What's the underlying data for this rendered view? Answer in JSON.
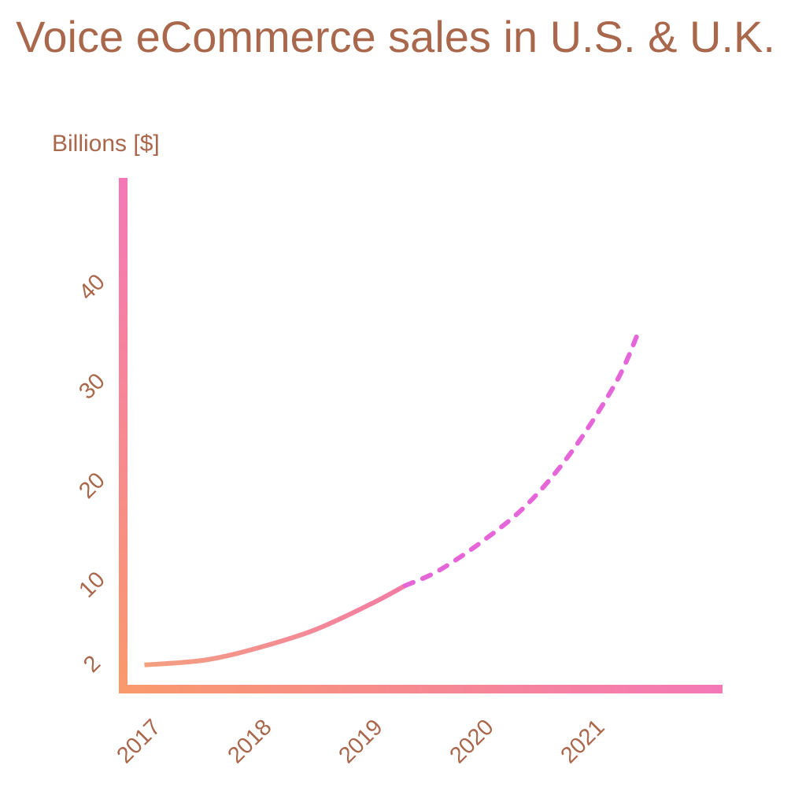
{
  "chart_data": {
    "type": "line",
    "title": "Voice eCommerce sales in U.S. & U.K.",
    "ylabel": "Billions [$]",
    "xlabel": "",
    "categories": [
      "2017",
      "2018",
      "2019",
      "2020",
      "2021"
    ],
    "y_ticks": [
      "2",
      "10",
      "20",
      "30",
      "40"
    ],
    "ylim": [
      0,
      50
    ],
    "grid": false,
    "series": [
      {
        "style": "solid",
        "x": [
          2016.95,
          2017.5,
          2018.0,
          2018.5,
          2019.0,
          2019.3
        ],
        "y": [
          2.0,
          2.5,
          3.8,
          5.6,
          8.2,
          10.0
        ]
      },
      {
        "style": "dashed",
        "x": [
          2019.3,
          2019.6,
          2020.0,
          2020.4,
          2020.8,
          2021.2,
          2021.4
        ],
        "y": [
          10.0,
          11.5,
          14.5,
          18.2,
          23.5,
          30.5,
          35.5
        ]
      }
    ],
    "colors": {
      "text": "#a9674b",
      "axis_start": "#f99a6b",
      "axis_end": "#f478b7",
      "line_start": "#f4a07f",
      "line_end": "#f27ca4",
      "dashed": "#e566d8"
    }
  }
}
